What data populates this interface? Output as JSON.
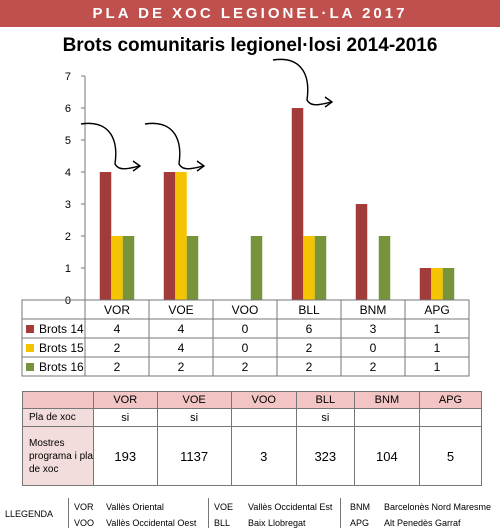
{
  "banner": "PLA DE XOC LEGIONEL·LA 2017",
  "chart_data": {
    "type": "bar",
    "title": "Brots comunitaris legionel·losi 2014-2016",
    "categories": [
      "VOR",
      "VOE",
      "VOO",
      "BLL",
      "BNM",
      "APG"
    ],
    "ylim": [
      0,
      7
    ],
    "yticks": [
      0,
      1,
      2,
      3,
      4,
      5,
      6,
      7
    ],
    "grid": false,
    "legend": "data-table",
    "series": [
      {
        "name": "Brots 14",
        "color": "#a33b3b",
        "values": [
          4,
          4,
          0,
          6,
          3,
          1
        ]
      },
      {
        "name": "Brots 15",
        "color": "#f5c400",
        "values": [
          2,
          4,
          0,
          2,
          0,
          1
        ]
      },
      {
        "name": "Brots 16",
        "color": "#77933c",
        "values": [
          2,
          2,
          2,
          2,
          2,
          1
        ]
      }
    ],
    "arrows_over": [
      "VOR",
      "VOE",
      "BLL"
    ]
  },
  "info_table": {
    "headers": [
      "VOR",
      "VOE",
      "VOO",
      "BLL",
      "BNM",
      "APG"
    ],
    "rows": [
      {
        "label": "Pla de xoc",
        "values": [
          "si",
          "si",
          "",
          "si",
          "",
          ""
        ]
      },
      {
        "label": "Mostres programa i pla de xoc",
        "values": [
          "193",
          "1137",
          "3",
          "323",
          "104",
          "5"
        ]
      }
    ]
  },
  "legend": {
    "title": "LLEGENDA",
    "items": [
      {
        "code": "VOR",
        "name": "Vallès Oriental"
      },
      {
        "code": "VOO",
        "name": "Vallès Occidental Oest"
      },
      {
        "code": "VOE",
        "name": "Vallès  Occidental Est"
      },
      {
        "code": "BLL",
        "name": "Baix Llobregat"
      },
      {
        "code": "BNM",
        "name": "Barcelonès Nord Maresme"
      },
      {
        "code": "APG",
        "name": "Alt Penedès Garraf"
      }
    ]
  }
}
